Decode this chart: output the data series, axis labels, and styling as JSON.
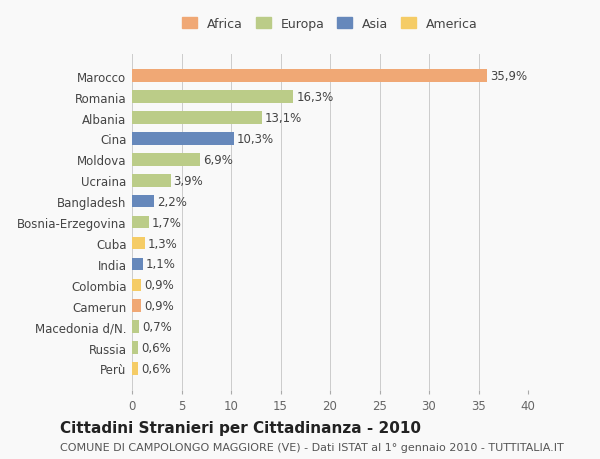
{
  "countries": [
    "Marocco",
    "Romania",
    "Albania",
    "Cina",
    "Moldova",
    "Ucraina",
    "Bangladesh",
    "Bosnia-Erzegovina",
    "Cuba",
    "India",
    "Colombia",
    "Camerun",
    "Macedonia d/N.",
    "Russia",
    "Perù"
  ],
  "values": [
    35.9,
    16.3,
    13.1,
    10.3,
    6.9,
    3.9,
    2.2,
    1.7,
    1.3,
    1.1,
    0.9,
    0.9,
    0.7,
    0.6,
    0.6
  ],
  "labels": [
    "35,9%",
    "16,3%",
    "13,1%",
    "10,3%",
    "6,9%",
    "3,9%",
    "2,2%",
    "1,7%",
    "1,3%",
    "1,1%",
    "0,9%",
    "0,9%",
    "0,7%",
    "0,6%",
    "0,6%"
  ],
  "continents": [
    "Africa",
    "Europa",
    "Europa",
    "Asia",
    "Europa",
    "Europa",
    "Asia",
    "Europa",
    "America",
    "Asia",
    "America",
    "Africa",
    "Europa",
    "Europa",
    "America"
  ],
  "colors": {
    "Africa": "#F0A875",
    "Europa": "#BBCC88",
    "Asia": "#6688BB",
    "America": "#F5CC66"
  },
  "legend_order": [
    "Africa",
    "Europa",
    "Asia",
    "America"
  ],
  "xlim": [
    0,
    40
  ],
  "xticks": [
    0,
    5,
    10,
    15,
    20,
    25,
    30,
    35,
    40
  ],
  "title": "Cittadini Stranieri per Cittadinanza - 2010",
  "subtitle": "COMUNE DI CAMPOLONGO MAGGIORE (VE) - Dati ISTAT al 1° gennaio 2010 - TUTTITALIA.IT",
  "background_color": "#f9f9f9",
  "bar_height": 0.6,
  "label_fontsize": 8.5,
  "country_fontsize": 8.5,
  "title_fontsize": 11,
  "subtitle_fontsize": 8
}
